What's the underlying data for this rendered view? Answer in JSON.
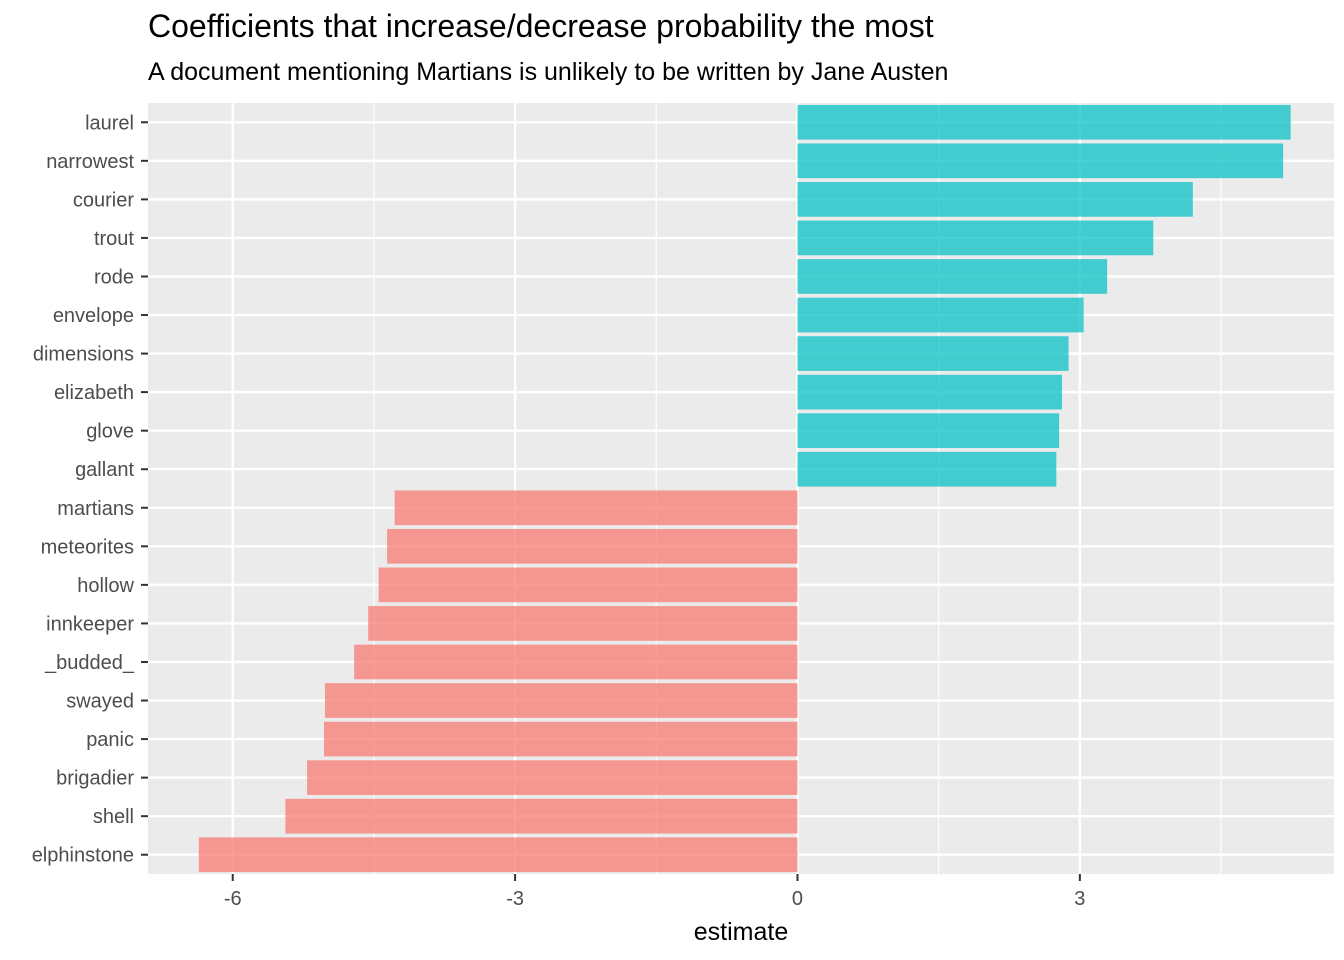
{
  "chart_data": {
    "type": "bar",
    "orientation": "horizontal",
    "title": "Coefficients that increase/decrease probability the most",
    "subtitle": "A document mentioning Martians is unlikely to be written by Jane Austen",
    "xlabel": "estimate",
    "ylabel": "",
    "xlim": [
      -6.9,
      5.7
    ],
    "x_ticks": [
      -6,
      -3,
      0,
      3
    ],
    "x_tick_labels": [
      "-6",
      "-3",
      "0",
      "3"
    ],
    "grid": true,
    "legend": "none",
    "categories": [
      "laurel",
      "narrowest",
      "courier",
      "trout",
      "rode",
      "envelope",
      "dimensions",
      "elizabeth",
      "glove",
      "gallant",
      "martians",
      "meteorites",
      "hollow",
      "innkeeper",
      "_budded_",
      "swayed",
      "panic",
      "brigadier",
      "shell",
      "elphinstone"
    ],
    "values": [
      5.24,
      5.16,
      4.2,
      3.78,
      3.29,
      3.04,
      2.88,
      2.81,
      2.78,
      2.75,
      -4.28,
      -4.36,
      -4.45,
      -4.56,
      -4.71,
      -5.02,
      -5.03,
      -5.21,
      -5.44,
      -6.36
    ],
    "colors": {
      "positive": "#00BFC4",
      "negative": "#F8766D",
      "panel": "#EBEBEB",
      "grid": "#FFFFFF"
    }
  }
}
